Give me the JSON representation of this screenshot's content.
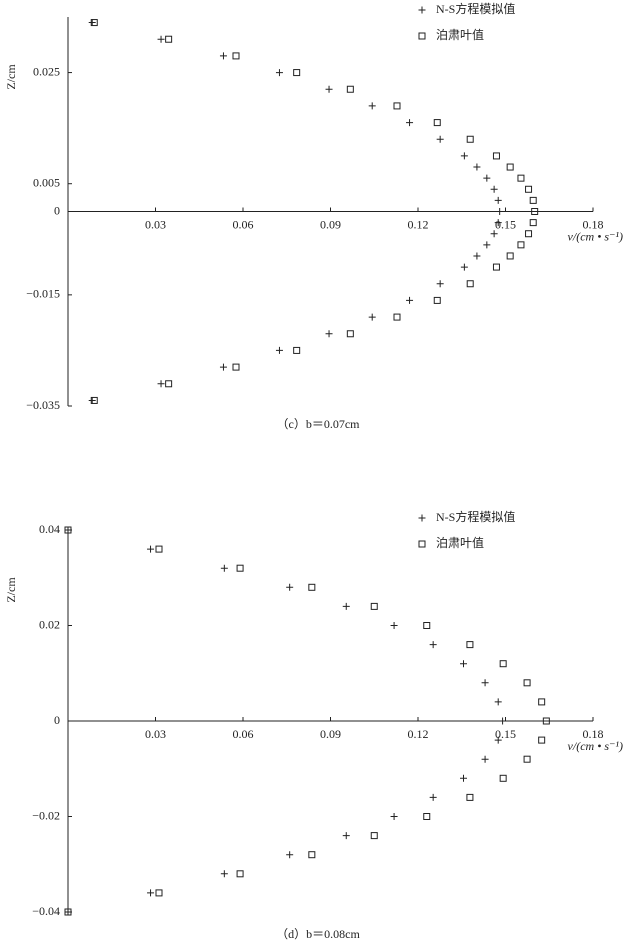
{
  "chart_data": [
    {
      "type": "scatter",
      "caption": "（c）b＝0.07cm",
      "ylabel": "Z/cm",
      "xlabel": "v/(cm • s⁻¹)",
      "xlim": [
        0,
        0.18
      ],
      "xticks": [
        0.03,
        0.06,
        0.09,
        0.12,
        0.15,
        0.18
      ],
      "ylim": [
        -0.035,
        0.035
      ],
      "yticks": [
        0.025,
        0.005,
        0,
        {
          "value": -0.015,
          "label": "−0.015"
        },
        {
          "value": -0.035,
          "label": "−0.035"
        }
      ],
      "legend": "upper right",
      "series": [
        {
          "name": "N-S方程模拟值",
          "marker": "plus",
          "color": "#222",
          "x": [
            0.0083,
            0.0319,
            0.0533,
            0.0725,
            0.0895,
            0.1043,
            0.1171,
            0.1276,
            0.1359,
            0.1402,
            0.1436,
            0.1461,
            0.1475,
            0.148,
            0.1475,
            0.1461,
            0.1436,
            0.1402,
            0.1359,
            0.1276,
            0.1171,
            0.1043,
            0.0895,
            0.0725,
            0.0533,
            0.0319,
            0.0083
          ],
          "y": [
            0.034,
            0.031,
            0.028,
            0.025,
            0.022,
            0.019,
            0.016,
            0.013,
            0.01,
            0.008,
            0.006,
            0.004,
            0.002,
            0,
            -0.002,
            -0.004,
            -0.006,
            -0.008,
            -0.01,
            -0.013,
            -0.016,
            -0.019,
            -0.022,
            -0.025,
            -0.028,
            -0.031,
            -0.034
          ]
        },
        {
          "name": "泊肃叶值",
          "marker": "square",
          "color": "#222",
          "x": [
            0.009,
            0.0345,
            0.0576,
            0.0784,
            0.0968,
            0.1128,
            0.1266,
            0.1379,
            0.1469,
            0.1516,
            0.1553,
            0.1579,
            0.1595,
            0.16,
            0.1595,
            0.1579,
            0.1553,
            0.1516,
            0.1469,
            0.1379,
            0.1266,
            0.1128,
            0.0968,
            0.0784,
            0.0576,
            0.0345,
            0.009
          ],
          "y": [
            0.034,
            0.031,
            0.028,
            0.025,
            0.022,
            0.019,
            0.016,
            0.013,
            0.01,
            0.008,
            0.006,
            0.004,
            0.002,
            0,
            -0.002,
            -0.004,
            -0.006,
            -0.008,
            -0.01,
            -0.013,
            -0.016,
            -0.019,
            -0.022,
            -0.025,
            -0.028,
            -0.031,
            -0.034
          ]
        }
      ]
    },
    {
      "type": "scatter",
      "caption": "（d）b＝0.08cm",
      "ylabel": "Z/cm",
      "xlabel": "v/(cm • s⁻¹)",
      "xlim": [
        0,
        0.18
      ],
      "xticks": [
        0.03,
        0.06,
        0.09,
        0.12,
        0.15,
        0.18
      ],
      "ylim": [
        -0.04,
        0.04
      ],
      "yticks": [
        0.04,
        0.02,
        0,
        {
          "value": -0.02,
          "label": "−0.02"
        },
        {
          "value": -0.04,
          "label": "−0.04"
        }
      ],
      "legend": "upper right",
      "series": [
        {
          "name": "N-S方程模拟值",
          "marker": "plus",
          "color": "#222",
          "x": [
            0,
            0.0283,
            0.0536,
            0.076,
            0.0954,
            0.1118,
            0.1252,
            0.1356,
            0.143,
            0.1475,
            0.149,
            0.1475,
            0.143,
            0.1356,
            0.1252,
            0.1118,
            0.0954,
            0.076,
            0.0536,
            0.0283,
            0
          ],
          "y": [
            0.04,
            0.036,
            0.032,
            0.028,
            0.024,
            0.02,
            0.016,
            0.012,
            0.008,
            0.004,
            0,
            -0.004,
            -0.008,
            -0.012,
            -0.016,
            -0.02,
            -0.024,
            -0.028,
            -0.032,
            -0.036,
            -0.04
          ]
        },
        {
          "name": "泊肃叶值",
          "marker": "square",
          "color": "#222",
          "x": [
            0,
            0.0312,
            0.059,
            0.0836,
            0.105,
            0.123,
            0.1378,
            0.1492,
            0.1574,
            0.1624,
            0.164,
            0.1624,
            0.1574,
            0.1492,
            0.1378,
            0.123,
            0.105,
            0.0836,
            0.059,
            0.0312,
            0
          ],
          "y": [
            0.04,
            0.036,
            0.032,
            0.028,
            0.024,
            0.02,
            0.016,
            0.012,
            0.008,
            0.004,
            0,
            -0.004,
            -0.008,
            -0.012,
            -0.016,
            -0.02,
            -0.024,
            -0.028,
            -0.032,
            -0.036,
            -0.04
          ]
        }
      ]
    }
  ]
}
